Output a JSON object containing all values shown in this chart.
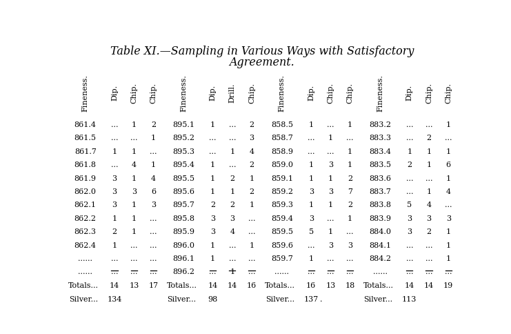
{
  "title_line1": "Table XI.—Sampling in Various Ways with Satisfactory",
  "title_line2": "Agreement.",
  "col_groups": [
    {
      "headers": [
        "Fineness.",
        "Dip.",
        "Chip.",
        "Chip."
      ],
      "rows": [
        [
          "861.4",
          "...",
          "1",
          "2"
        ],
        [
          "861.5",
          "...",
          "...",
          "1"
        ],
        [
          "861.7",
          "1",
          "1",
          "..."
        ],
        [
          "861.8",
          "...",
          "4",
          "1"
        ],
        [
          "861.9",
          "3",
          "1",
          "4"
        ],
        [
          "862.0",
          "3",
          "3",
          "6"
        ],
        [
          "862.1",
          "3",
          "1",
          "3"
        ],
        [
          "862.2",
          "1",
          "1",
          "..."
        ],
        [
          "862.3",
          "2",
          "1",
          "..."
        ],
        [
          "862.4",
          "1",
          "...",
          "..."
        ],
        [
          "......",
          "...",
          "...",
          "..."
        ],
        [
          "......",
          "...",
          "...",
          "..."
        ]
      ],
      "totals": [
        "14",
        "13",
        "17"
      ],
      "silver": "134"
    },
    {
      "headers": [
        "Fineness.",
        "Dip.",
        "Drill.",
        "Chip."
      ],
      "rows": [
        [
          "895.1",
          "1",
          "...",
          "2"
        ],
        [
          "895.2",
          "...",
          "...",
          "3"
        ],
        [
          "895.3",
          "...",
          "1",
          "4"
        ],
        [
          "895.4",
          "1",
          "...",
          "2"
        ],
        [
          "895.5",
          "1",
          "2",
          "1"
        ],
        [
          "895.6",
          "1",
          "1",
          "2"
        ],
        [
          "895.7",
          "2",
          "2",
          "1"
        ],
        [
          "895.8",
          "3",
          "3",
          "..."
        ],
        [
          "895.9",
          "3",
          "4",
          "..."
        ],
        [
          "896.0",
          "1",
          "...",
          "1"
        ],
        [
          "896.1",
          "1",
          "...",
          "..."
        ],
        [
          "896.2",
          "...",
          "1",
          "..."
        ]
      ],
      "totals": [
        "14",
        "14",
        "16"
      ],
      "silver": "98"
    },
    {
      "headers": [
        "Fineness.",
        "Dip.",
        "Chip.",
        "Chip."
      ],
      "rows": [
        [
          "858.5",
          "1",
          "...",
          "1"
        ],
        [
          "858.7",
          "...",
          "1",
          "..."
        ],
        [
          "858.9",
          "...",
          "...",
          "1"
        ],
        [
          "859.0",
          "1",
          "3",
          "1"
        ],
        [
          "859.1",
          "1",
          "1",
          "2"
        ],
        [
          "859.2",
          "3",
          "3",
          "7"
        ],
        [
          "859.3",
          "1",
          "1",
          "2"
        ],
        [
          "859.4",
          "3",
          "...",
          "1"
        ],
        [
          "859.5",
          "5",
          "1",
          "..."
        ],
        [
          "859.6",
          "...",
          "3",
          "3"
        ],
        [
          "859.7",
          "1",
          "...",
          "..."
        ],
        [
          "......",
          "...",
          "...",
          "..."
        ]
      ],
      "totals": [
        "16",
        "13",
        "18"
      ],
      "silver": "137"
    },
    {
      "headers": [
        "Fineness.",
        "Dip.",
        "Chip.",
        "Chip."
      ],
      "rows": [
        [
          "883.2",
          "...",
          "...",
          "1"
        ],
        [
          "883.3",
          "...",
          "2",
          "..."
        ],
        [
          "883.4",
          "1",
          "1",
          "1"
        ],
        [
          "883.5",
          "2",
          "1",
          "6"
        ],
        [
          "883.6",
          "...",
          "...",
          "1"
        ],
        [
          "883.7",
          "...",
          "1",
          "4"
        ],
        [
          "883.8",
          "5",
          "4",
          "..."
        ],
        [
          "883.9",
          "3",
          "3",
          "3"
        ],
        [
          "884.0",
          "3",
          "2",
          "1"
        ],
        [
          "884.1",
          "...",
          "...",
          "1"
        ],
        [
          "884.2",
          "...",
          "...",
          "1"
        ],
        [
          "......",
          "...",
          "...",
          "..."
        ]
      ],
      "totals": [
        "14",
        "14",
        "19"
      ],
      "silver": "113"
    }
  ],
  "bg_color": "#ffffff",
  "text_color": "#000000",
  "font_size": 8.0,
  "title_font_size": 11.5
}
